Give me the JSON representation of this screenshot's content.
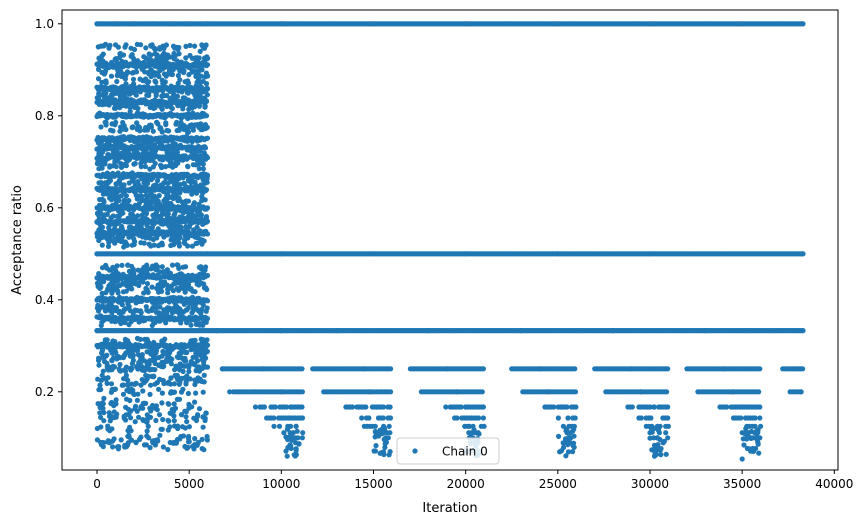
{
  "chart_data": {
    "type": "scatter",
    "title": "",
    "xlabel": "Iteration",
    "ylabel": "Acceptance ratio",
    "xlim": [
      -1900,
      40200
    ],
    "ylim": [
      0.03,
      1.03
    ],
    "xticks": [
      0,
      5000,
      10000,
      15000,
      20000,
      25000,
      30000,
      35000,
      40000
    ],
    "xtick_labels": [
      "0",
      "5000",
      "10000",
      "15000",
      "20000",
      "25000",
      "30000",
      "35000",
      "40000"
    ],
    "yticks": [
      0.2,
      0.4,
      0.6,
      0.8,
      1.0
    ],
    "ytick_labels": [
      "0.2",
      "0.4",
      "0.6",
      "0.8",
      "1.0"
    ],
    "grid": false,
    "legend": {
      "position": "lower center",
      "entries": [
        "Chain 0"
      ]
    },
    "series": [
      {
        "name": "Chain 0",
        "color": "#1f77b4",
        "marker": "circle",
        "x_range": [
          0,
          38300
        ],
        "description_of_structure": {
          "dense_region_x": [
            0,
            6000
          ],
          "levels_throughout": [
            1.0,
            0.5,
            0.333,
            0.25
          ],
          "periodic_dips_x_centers": [
            10800,
            15500,
            20300,
            25000,
            30000,
            34800
          ]
        },
        "sample_points": [
          [
            0,
            1.0
          ],
          [
            1000,
            1.0
          ],
          [
            2000,
            1.0
          ],
          [
            3000,
            1.0
          ],
          [
            4000,
            1.0
          ],
          [
            5000,
            1.0
          ],
          [
            6000,
            1.0
          ],
          [
            10000,
            1.0
          ],
          [
            15000,
            1.0
          ],
          [
            20000,
            1.0
          ],
          [
            25000,
            1.0
          ],
          [
            30000,
            1.0
          ],
          [
            35000,
            1.0
          ],
          [
            38300,
            1.0
          ],
          [
            300,
            0.92
          ],
          [
            1200,
            0.9
          ],
          [
            2500,
            0.91
          ],
          [
            3700,
            0.92
          ],
          [
            5600,
            0.94
          ],
          [
            500,
            0.83
          ],
          [
            1800,
            0.81
          ],
          [
            2900,
            0.8
          ],
          [
            4200,
            0.84
          ],
          [
            5300,
            0.82
          ],
          [
            400,
            0.75
          ],
          [
            1500,
            0.72
          ],
          [
            3100,
            0.73
          ],
          [
            4800,
            0.71
          ],
          [
            600,
            0.67
          ],
          [
            2000,
            0.67
          ],
          [
            3500,
            0.67
          ],
          [
            5200,
            0.67
          ],
          [
            200,
            0.6
          ],
          [
            1600,
            0.61
          ],
          [
            3200,
            0.62
          ],
          [
            4500,
            0.58
          ],
          [
            700,
            0.55
          ],
          [
            2300,
            0.54
          ],
          [
            3900,
            0.56
          ],
          [
            5700,
            0.53
          ],
          [
            0,
            0.5
          ],
          [
            6000,
            0.5
          ],
          [
            10000,
            0.5
          ],
          [
            15000,
            0.5
          ],
          [
            20000,
            0.5
          ],
          [
            25000,
            0.5
          ],
          [
            30000,
            0.5
          ],
          [
            38300,
            0.5
          ],
          [
            300,
            0.45
          ],
          [
            1900,
            0.44
          ],
          [
            3600,
            0.46
          ],
          [
            5400,
            0.45
          ],
          [
            500,
            0.4
          ],
          [
            2600,
            0.4
          ],
          [
            4700,
            0.4
          ],
          [
            0,
            0.333
          ],
          [
            6500,
            0.333
          ],
          [
            10000,
            0.333
          ],
          [
            13000,
            0.333
          ],
          [
            18000,
            0.333
          ],
          [
            23000,
            0.333
          ],
          [
            28000,
            0.333
          ],
          [
            33000,
            0.333
          ],
          [
            38300,
            0.333
          ],
          [
            300,
            0.3
          ],
          [
            2200,
            0.29
          ],
          [
            4400,
            0.3
          ],
          [
            6800,
            0.25
          ],
          [
            9000,
            0.25
          ],
          [
            14500,
            0.25
          ],
          [
            19000,
            0.25
          ],
          [
            24000,
            0.25
          ],
          [
            29000,
            0.25
          ],
          [
            34000,
            0.25
          ],
          [
            38000,
            0.25
          ],
          [
            7200,
            0.2
          ],
          [
            10000,
            0.2
          ],
          [
            14800,
            0.2
          ],
          [
            19500,
            0.2
          ],
          [
            24500,
            0.2
          ],
          [
            29500,
            0.2
          ],
          [
            34500,
            0.2
          ],
          [
            38200,
            0.2
          ],
          [
            10500,
            0.167
          ],
          [
            15200,
            0.167
          ],
          [
            20000,
            0.167
          ],
          [
            25200,
            0.167
          ],
          [
            30200,
            0.167
          ],
          [
            35000,
            0.167
          ],
          [
            10800,
            0.125
          ],
          [
            15600,
            0.12
          ],
          [
            20200,
            0.125
          ],
          [
            30200,
            0.12
          ],
          [
            35200,
            0.12
          ],
          [
            10900,
            0.1
          ],
          [
            15800,
            0.1
          ],
          [
            30400,
            0.1
          ],
          [
            35300,
            0.1
          ],
          [
            10700,
            0.063
          ],
          [
            15900,
            0.07
          ],
          [
            25800,
            0.07
          ],
          [
            30100,
            0.074
          ],
          [
            35000,
            0.054
          ],
          [
            200,
            0.09
          ],
          [
            1500,
            0.08
          ],
          [
            2800,
            0.1
          ],
          [
            3600,
            0.08
          ],
          [
            4300,
            0.09
          ],
          [
            5500,
            0.09
          ]
        ]
      }
    ]
  }
}
